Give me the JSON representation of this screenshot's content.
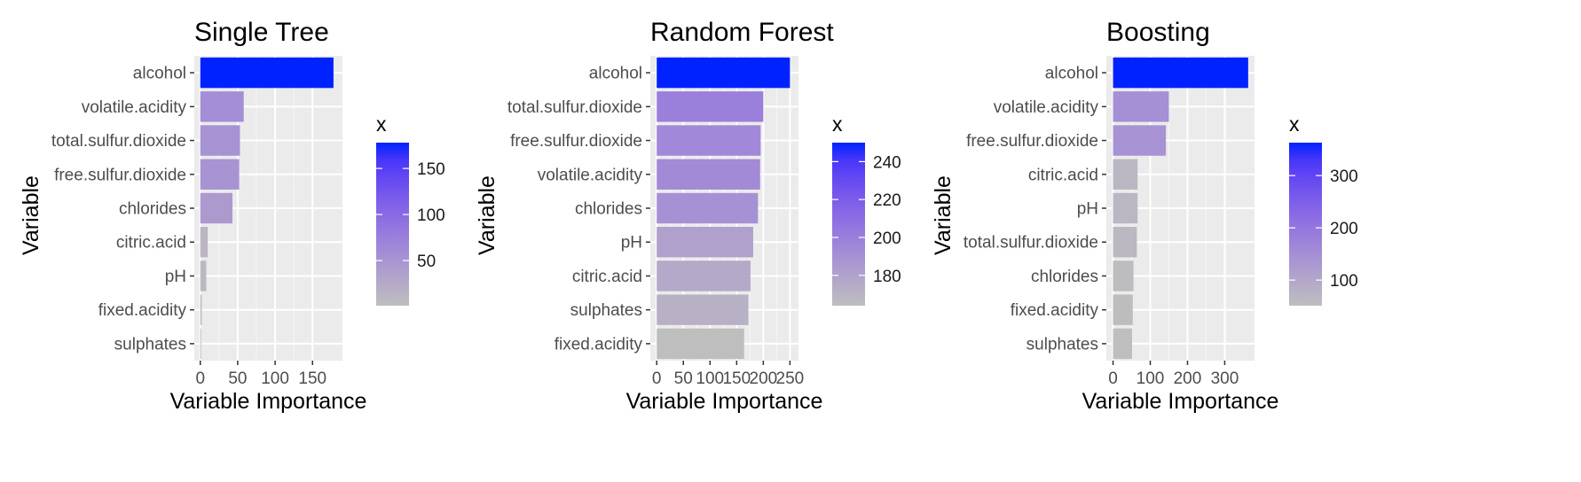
{
  "chart_data": [
    {
      "type": "bar",
      "orientation": "horizontal",
      "title": "Single Tree",
      "xlabel": "Variable Importance",
      "ylabel": "Variable",
      "categories": [
        "alcohol",
        "volatile.acidity",
        "total.sulfur.dioxide",
        "free.sulfur.dioxide",
        "chlorides",
        "citric.acid",
        "pH",
        "fixed.acidity",
        "sulphates"
      ],
      "values": [
        178,
        58,
        53,
        52,
        43,
        10,
        8,
        2,
        1
      ],
      "xlim": [
        -8,
        190
      ],
      "xticks": [
        0,
        50,
        100,
        150
      ],
      "legend": {
        "title": "x",
        "min": 1,
        "max": 178,
        "ticks": [
          50,
          100,
          150
        ]
      },
      "grid": true
    },
    {
      "type": "bar",
      "orientation": "horizontal",
      "title": "Random Forest",
      "xlabel": "Variable Importance",
      "ylabel": "Variable",
      "categories": [
        "alcohol",
        "total.sulfur.dioxide",
        "free.sulfur.dioxide",
        "volatile.acidity",
        "chlorides",
        "pH",
        "citric.acid",
        "sulphates",
        "fixed.acidity"
      ],
      "values": [
        250,
        200,
        195,
        194,
        190,
        181,
        176,
        172,
        164
      ],
      "xlim": [
        -12,
        266
      ],
      "xticks": [
        0,
        50,
        100,
        150,
        200,
        250
      ],
      "legend": {
        "title": "x",
        "min": 164,
        "max": 250,
        "ticks": [
          180,
          200,
          220,
          240
        ]
      },
      "grid": true
    },
    {
      "type": "bar",
      "orientation": "horizontal",
      "title": "Boosting",
      "xlabel": "Variable Importance",
      "ylabel": "Variable",
      "categories": [
        "alcohol",
        "volatile.acidity",
        "free.sulfur.dioxide",
        "citric.acid",
        "pH",
        "total.sulfur.dioxide",
        "chlorides",
        "fixed.acidity",
        "sulphates"
      ],
      "values": [
        363,
        150,
        142,
        66,
        66,
        64,
        55,
        53,
        51
      ],
      "xlim": [
        -18,
        380
      ],
      "xticks": [
        0,
        100,
        200,
        300
      ],
      "legend": {
        "title": "x",
        "min": 51,
        "max": 363,
        "ticks": [
          100,
          200,
          300
        ]
      },
      "grid": true
    }
  ],
  "colors": {
    "low": "#bebebe",
    "high": "#0022ff",
    "panel_bg": "#ebebeb",
    "grid_major": "#ffffff"
  }
}
